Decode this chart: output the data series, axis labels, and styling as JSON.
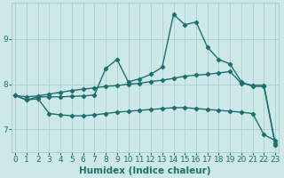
{
  "xlabel": "Humidex (Indice chaleur)",
  "background_color": "#cce9e8",
  "grid_color": "#aacfcf",
  "line_color": "#1e7070",
  "x_values": [
    0,
    1,
    2,
    3,
    4,
    5,
    6,
    7,
    8,
    9,
    10,
    11,
    12,
    13,
    14,
    15,
    16,
    17,
    18,
    19,
    20,
    21,
    22,
    23
  ],
  "line1_y": [
    7.75,
    7.65,
    7.72,
    7.72,
    7.72,
    7.73,
    7.74,
    7.76,
    8.35,
    8.55,
    8.05,
    8.12,
    8.22,
    8.38,
    9.55,
    9.32,
    9.38,
    8.82,
    8.55,
    8.45,
    8.05,
    7.95,
    7.95,
    6.65
  ],
  "line2_y": [
    7.75,
    7.72,
    7.74,
    7.78,
    7.82,
    7.86,
    7.89,
    7.92,
    7.95,
    7.97,
    8.0,
    8.02,
    8.06,
    8.09,
    8.13,
    8.18,
    8.2,
    8.22,
    8.25,
    8.28,
    8.02,
    7.98,
    7.98,
    6.68
  ],
  "line3_y": [
    7.75,
    7.65,
    7.68,
    7.35,
    7.32,
    7.3,
    7.3,
    7.32,
    7.35,
    7.38,
    7.4,
    7.42,
    7.44,
    7.46,
    7.48,
    7.48,
    7.46,
    7.44,
    7.42,
    7.4,
    7.38,
    7.35,
    6.88,
    6.75
  ],
  "ylim": [
    6.5,
    9.8
  ],
  "yticks": [
    7,
    8,
    9
  ],
  "xlim": [
    -0.3,
    23.3
  ],
  "xticks": [
    0,
    1,
    2,
    3,
    4,
    5,
    6,
    7,
    8,
    9,
    10,
    11,
    12,
    13,
    14,
    15,
    16,
    17,
    18,
    19,
    20,
    21,
    22,
    23
  ],
  "marker": "D",
  "marker_size": 2.2,
  "line_width": 1.0,
  "xlabel_fontsize": 7.5,
  "tick_fontsize": 6.5
}
